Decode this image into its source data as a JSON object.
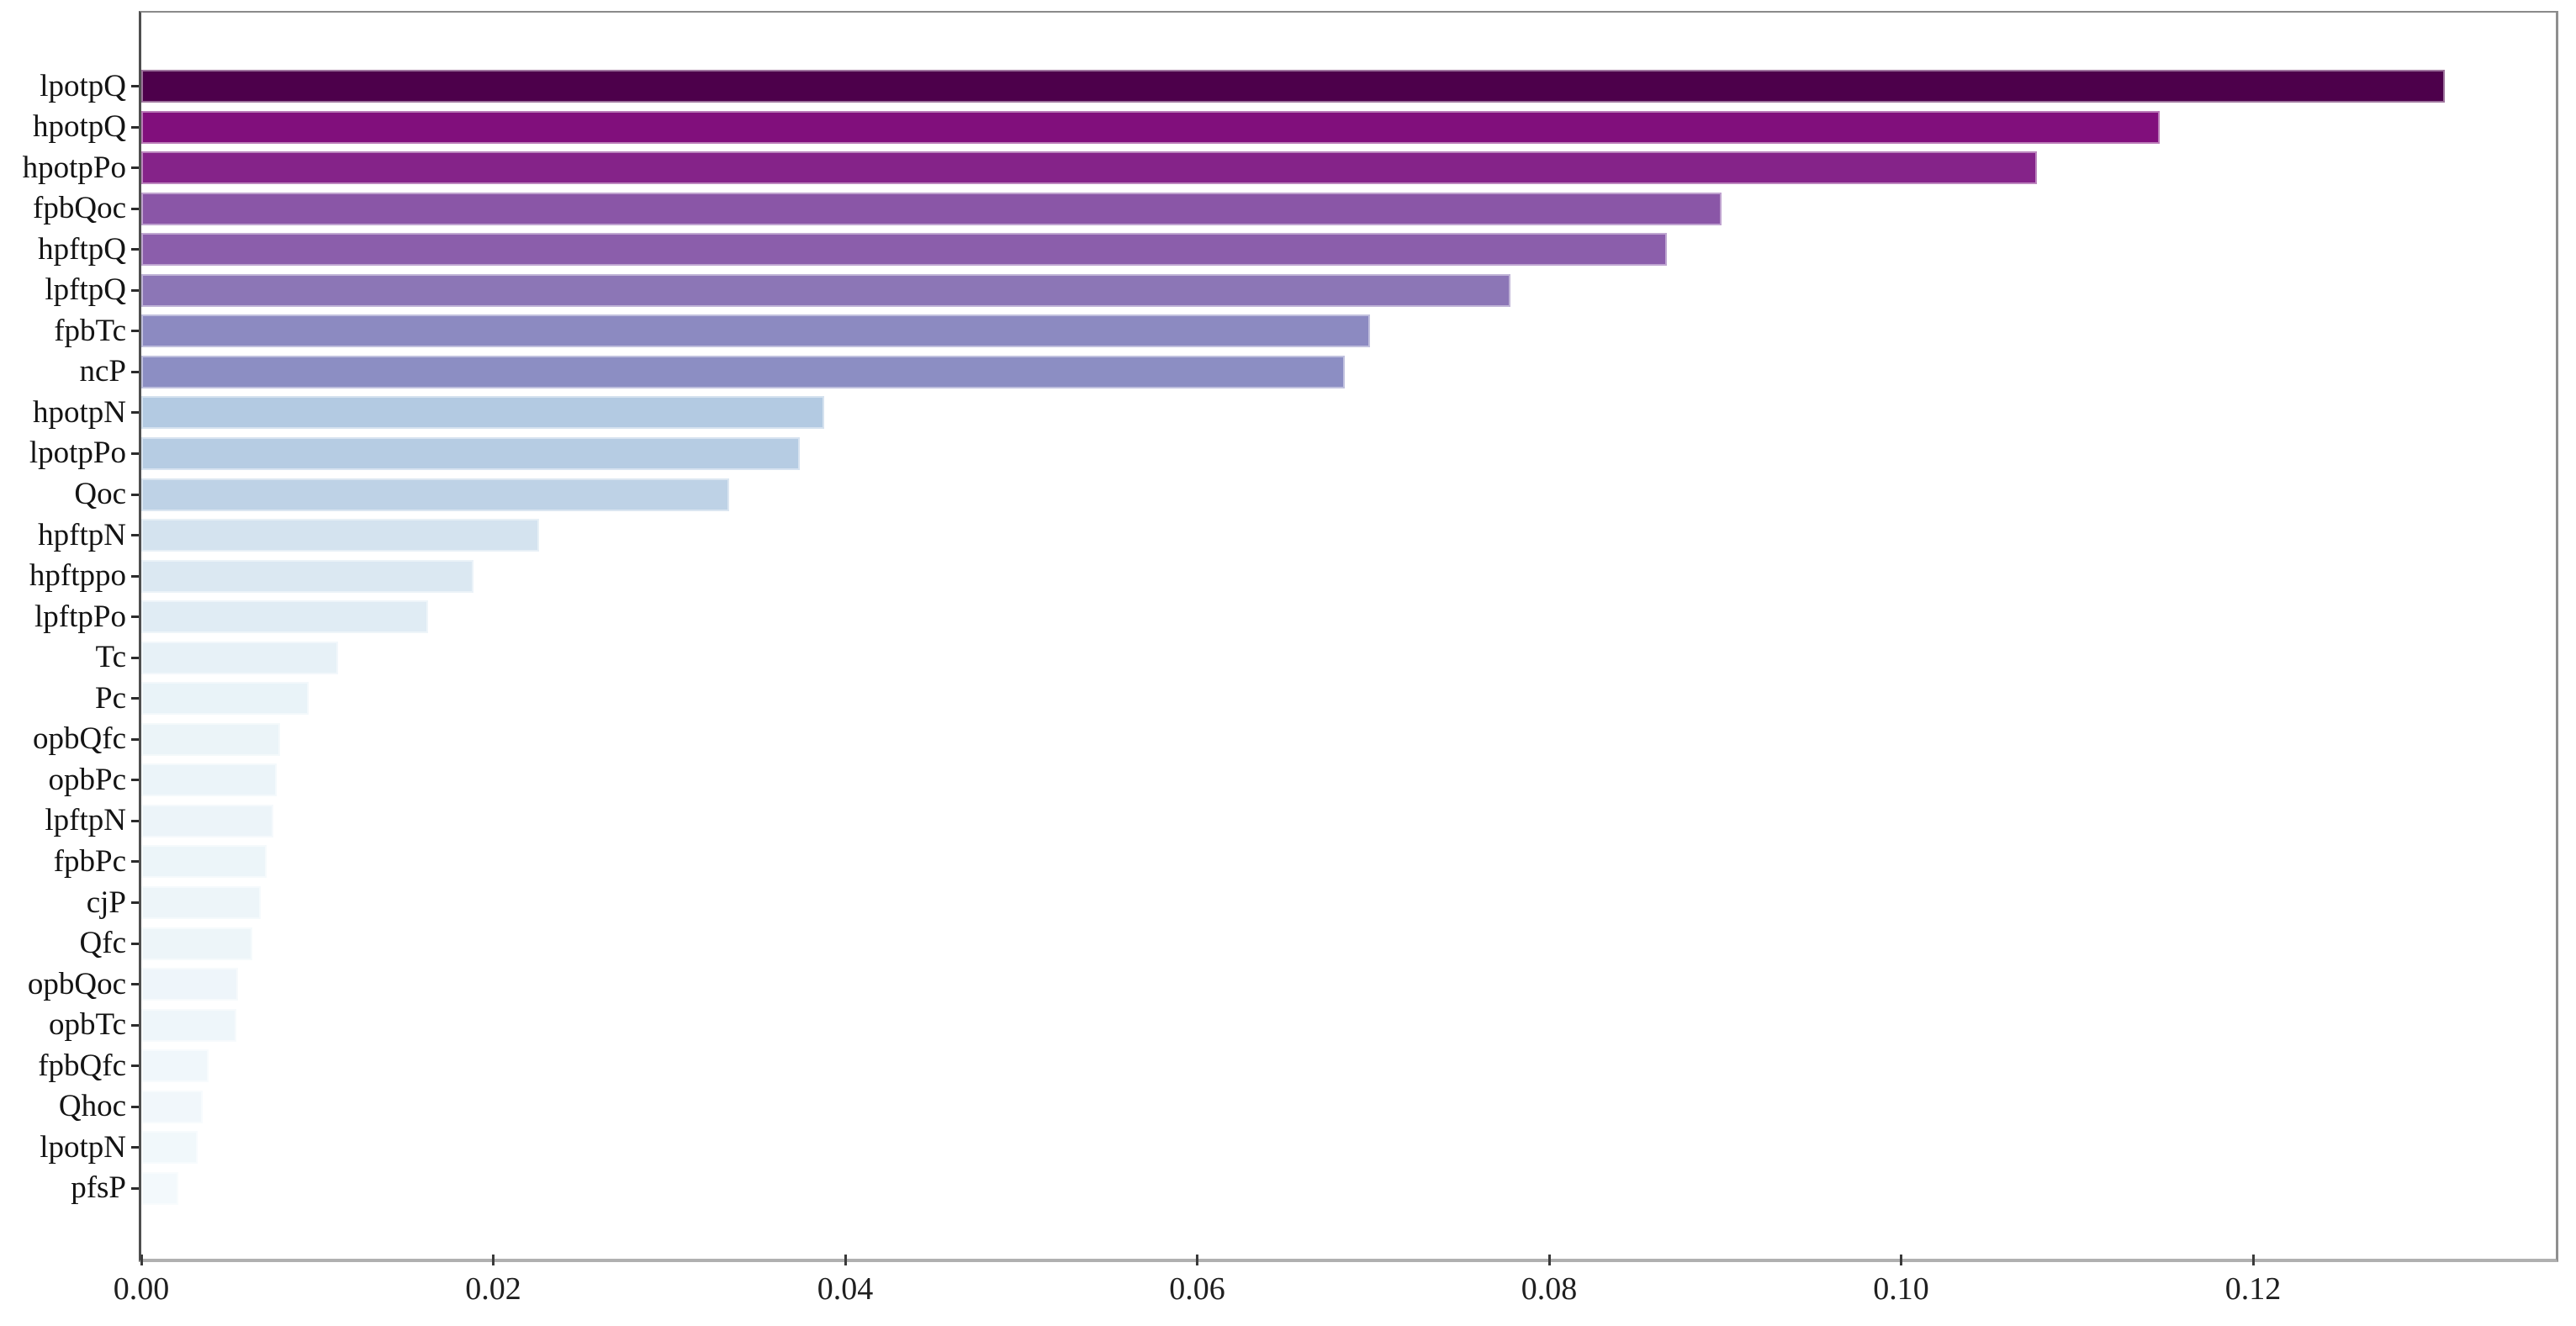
{
  "chart_data": {
    "type": "bar",
    "orientation": "horizontal",
    "title": "",
    "xlabel": "",
    "ylabel": "",
    "grid": false,
    "legend_position": "none",
    "xlim": [
      0.0,
      0.1372
    ],
    "x_ticks": [
      0.0,
      0.02,
      0.04,
      0.06,
      0.08,
      0.1,
      0.12
    ],
    "x_tick_labels": [
      "0.00",
      "0.02",
      "0.04",
      "0.06",
      "0.08",
      "0.10",
      "0.12"
    ],
    "categories": [
      "lpotpQ",
      "hpotpQ",
      "hpotpPo",
      "fpbQoc",
      "hpftpQ",
      "lpftpQ",
      "fpbTc",
      "ncP",
      "hpotpN",
      "lpotpPo",
      "Qoc",
      "hpftpN",
      "hpftppo",
      "lpftpPo",
      "Tc",
      "Pc",
      "opbQfc",
      "opbPc",
      "lpftpN",
      "fpbPc",
      "cjP",
      "Qfc",
      "opbQoc",
      "opbTc",
      "fpbQfc",
      "Qhoc",
      "lpotpN",
      "pfsP"
    ],
    "values": [
      0.1309,
      0.1147,
      0.1077,
      0.0898,
      0.0867,
      0.0778,
      0.0698,
      0.0684,
      0.0388,
      0.0374,
      0.0334,
      0.0226,
      0.0189,
      0.0163,
      0.0112,
      0.0095,
      0.0079,
      0.0077,
      0.0075,
      0.0071,
      0.0068,
      0.0063,
      0.0055,
      0.0054,
      0.0038,
      0.0035,
      0.0032,
      0.0021
    ],
    "bar_colors": [
      "#4d004b",
      "#810f7c",
      "#852389",
      "#8a56a7",
      "#8b5eab",
      "#8c76b6",
      "#8c8ac1",
      "#8c8ec3",
      "#b3cae2",
      "#b6cce3",
      "#bed2e6",
      "#d4e3ef",
      "#dbe8f2",
      "#e0ecf4",
      "#e7f1f7",
      "#e9f3f8",
      "#ebf4f8",
      "#ebf4f9",
      "#ecf4f9",
      "#ecf5f9",
      "#edf5f9",
      "#edf5f9",
      "#eef5fa",
      "#eef6fa",
      "#f0f7fb",
      "#f1f7fb",
      "#f1f8fb",
      "#f3f9fc"
    ]
  },
  "frame": {
    "background": "#ffffff",
    "spine_color": "#8a8a8a",
    "tick_color": "#2b2b2b",
    "text_color": "#141414"
  }
}
